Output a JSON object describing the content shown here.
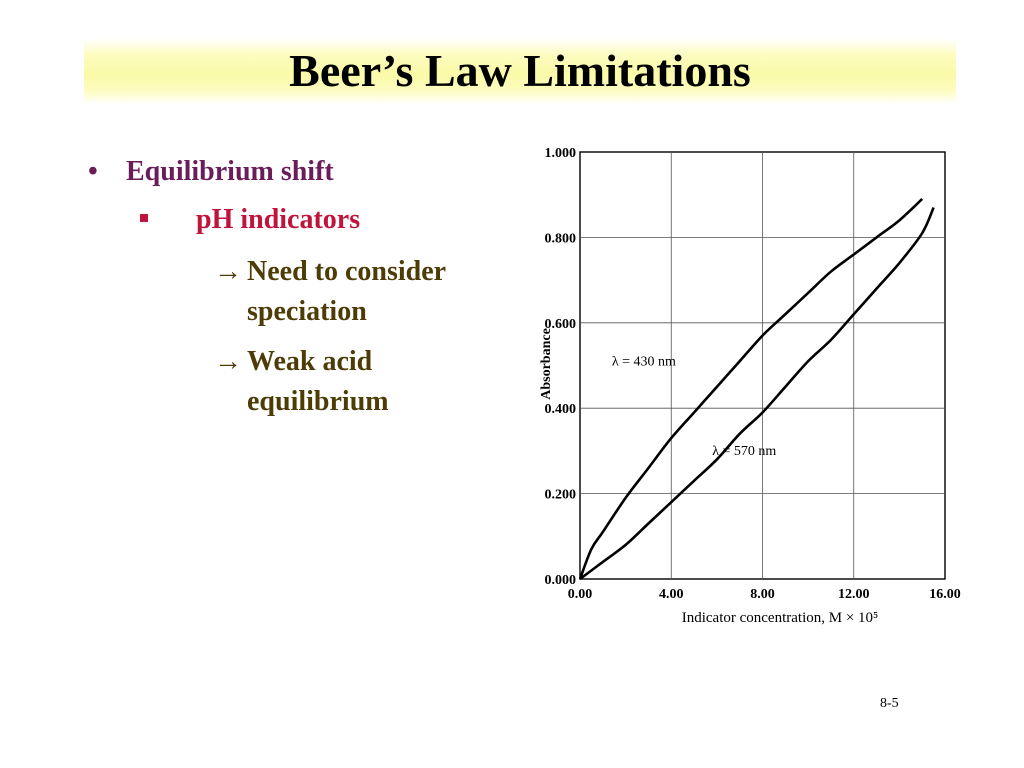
{
  "slide": {
    "title": "Beer’s Law Limitations",
    "page_number": "8-5"
  },
  "bullets": {
    "level1": {
      "marker": "•",
      "text": "Equilibrium shift"
    },
    "level2": {
      "marker": "square",
      "text": "pH indicators"
    },
    "level3": [
      {
        "marker": "→",
        "line1": "Need to consider",
        "line2": "speciation"
      },
      {
        "marker": "→",
        "line1": "Weak acid",
        "line2": "equilibrium"
      }
    ]
  },
  "colors": {
    "level1": "#6b1d5a",
    "level2": "#c0143c",
    "level3": "#4e3c06",
    "title_band": "#fafaa8"
  },
  "chart_data": {
    "type": "line",
    "xlabel": "Indicator concentration, M × 10⁵",
    "ylabel": "Absorbance",
    "xlim": [
      0,
      16
    ],
    "ylim": [
      0,
      1
    ],
    "x_ticks": [
      "0.00",
      "4.00",
      "8.00",
      "12.00",
      "16.00"
    ],
    "y_ticks": [
      "0.000",
      "0.200",
      "0.400",
      "0.600",
      "0.800",
      "1.000"
    ],
    "x_tick_values": [
      0,
      4,
      8,
      12,
      16
    ],
    "y_tick_values": [
      0,
      0.2,
      0.4,
      0.6,
      0.8,
      1.0
    ],
    "grid": true,
    "legend": "none",
    "series": [
      {
        "name": "λ = 430 nm",
        "x": [
          0,
          0.5,
          1,
          2,
          3,
          4,
          5,
          6,
          7,
          8,
          9,
          10,
          11,
          12,
          13,
          14,
          15
        ],
        "y": [
          0,
          0.07,
          0.11,
          0.19,
          0.26,
          0.33,
          0.39,
          0.45,
          0.51,
          0.57,
          0.62,
          0.67,
          0.72,
          0.76,
          0.8,
          0.84,
          0.89
        ]
      },
      {
        "name": "λ = 570 nm",
        "x": [
          0,
          1,
          2,
          3,
          4,
          5,
          6,
          7,
          8,
          9,
          10,
          11,
          12,
          13,
          14,
          15,
          15.5
        ],
        "y": [
          0,
          0.04,
          0.08,
          0.13,
          0.18,
          0.23,
          0.28,
          0.34,
          0.39,
          0.45,
          0.51,
          0.56,
          0.62,
          0.68,
          0.74,
          0.81,
          0.87
        ]
      }
    ],
    "annotations": [
      {
        "text": "λ = 430 nm",
        "x": 2.8,
        "y": 0.5,
        "series": 0
      },
      {
        "text": "λ = 570 nm",
        "x": 7.2,
        "y": 0.29,
        "series": 1
      }
    ]
  }
}
